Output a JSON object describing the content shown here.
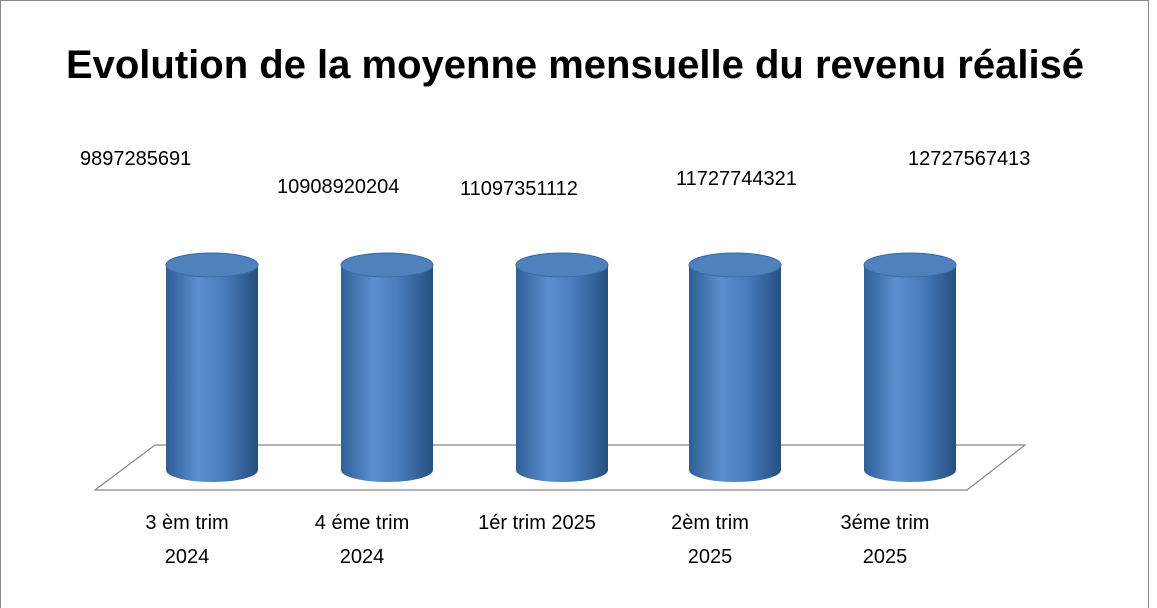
{
  "chart_data": {
    "type": "bar",
    "title": "Evolution de la moyenne mensuelle du revenu réalisé",
    "categories": [
      "3 èm trim\n2024",
      "4 éme trim\n2024",
      "1ér trim 2025",
      "2èm trim\n2025",
      "3éme trim\n2025"
    ],
    "values": [
      9897285691,
      10908920204,
      11097351112,
      11727744321,
      12727567413
    ],
    "color": "#4f81bd",
    "ylim": [
      0,
      9000000000
    ]
  }
}
